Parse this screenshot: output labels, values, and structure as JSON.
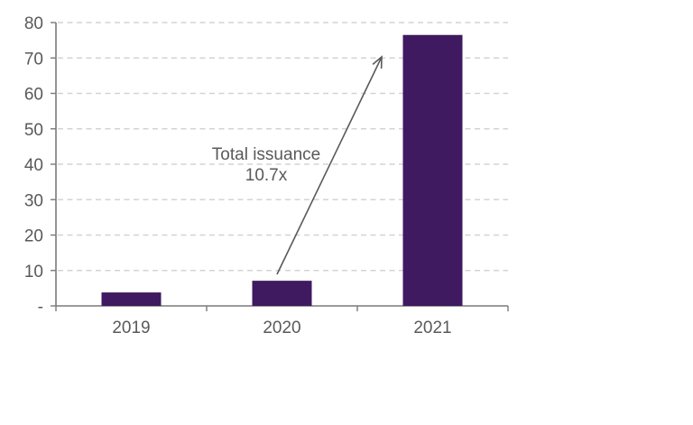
{
  "chart_data": {
    "type": "bar",
    "title": "",
    "categories": [
      "2019",
      "2020",
      "2021"
    ],
    "values": [
      3.8,
      7.1,
      76.5
    ],
    "xlabel": "",
    "ylabel": "",
    "ylim": [
      0,
      80
    ],
    "yticks": [
      {
        "v": 0,
        "label": "-"
      },
      {
        "v": 10,
        "label": "10"
      },
      {
        "v": 20,
        "label": "20"
      },
      {
        "v": 30,
        "label": "30"
      },
      {
        "v": 40,
        "label": "40"
      },
      {
        "v": 50,
        "label": "50"
      },
      {
        "v": 60,
        "label": "60"
      },
      {
        "v": 70,
        "label": "70"
      },
      {
        "v": 80,
        "label": "80"
      }
    ],
    "grid": "dashed horizontal",
    "legend": "none",
    "annotation": {
      "text": "Total issuance 10.7x",
      "arrow": "from top of 2020 bar to top of 2021 bar"
    }
  },
  "annotation": {
    "line1": "Total issuance",
    "line2": "10.7x"
  },
  "colors": {
    "bar": "#3f1a60",
    "axis": "#7a7a7a",
    "gridline": "#d3d3d3",
    "text": "#595959",
    "arrow": "#595959",
    "background": "#ffffff"
  }
}
